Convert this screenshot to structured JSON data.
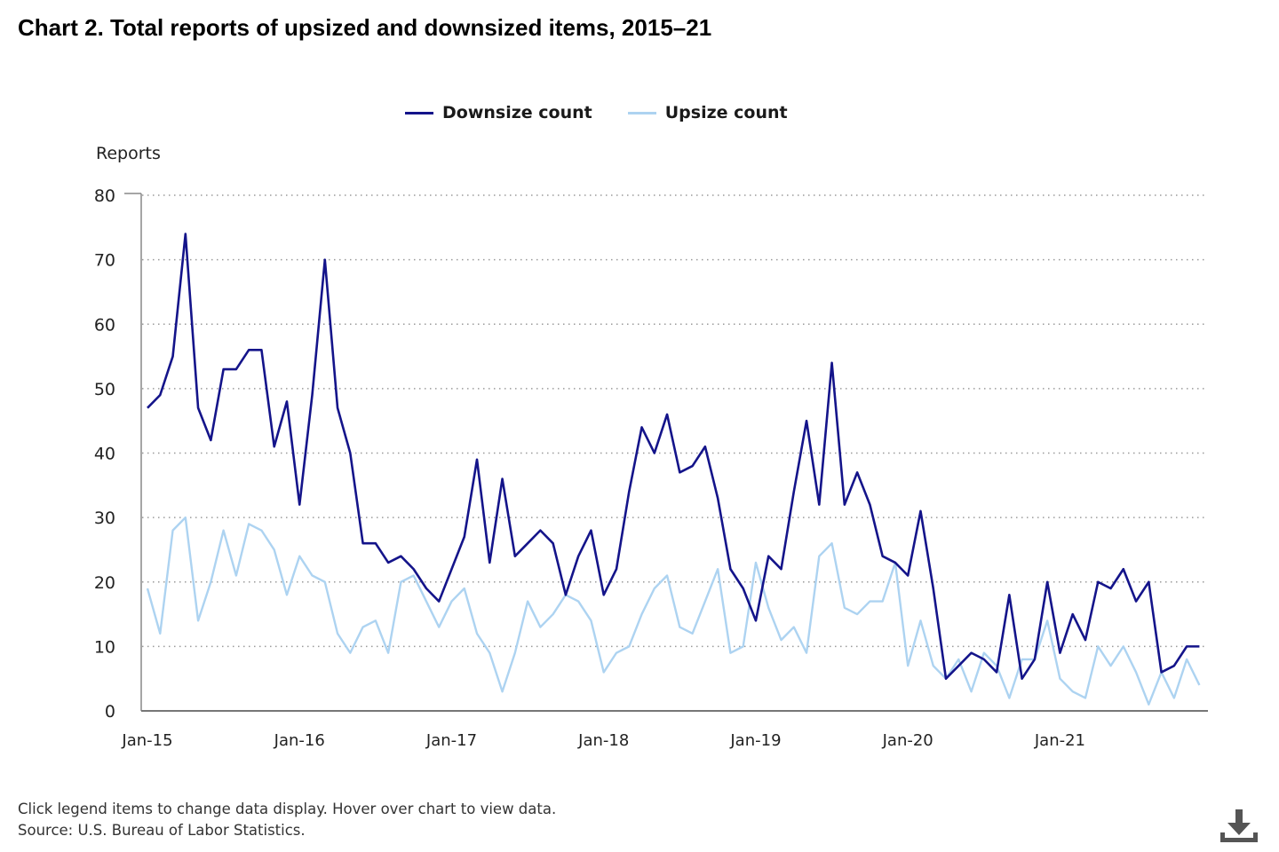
{
  "page": {
    "title": "Chart 2. Total reports of upsized and downsized items, 2015–21",
    "footer_line1": "Click legend items to change data display. Hover over chart to view data.",
    "footer_line2": "Source: U.S. Bureau of Labor Statistics.",
    "download_icon": "download-icon"
  },
  "legend": {
    "items": [
      {
        "label": "Downsize count",
        "color": "#14148a"
      },
      {
        "label": "Upsize count",
        "color": "#add3f1"
      }
    ]
  },
  "chart_data": {
    "type": "line",
    "title": "Chart 2. Total reports of upsized and downsized items, 2015–21",
    "ylabel": "Reports",
    "xlabel": "",
    "ylim": [
      0,
      80
    ],
    "yticks": [
      0,
      10,
      20,
      30,
      40,
      50,
      60,
      70,
      80
    ],
    "grid": true,
    "legend_position": "top-center",
    "xtick_labels": [
      {
        "label": "Jan-15",
        "index": 0
      },
      {
        "label": "Jan-16",
        "index": 12
      },
      {
        "label": "Jan-17",
        "index": 24
      },
      {
        "label": "Jan-18",
        "index": 36
      },
      {
        "label": "Jan-19",
        "index": 48
      },
      {
        "label": "Jan-20",
        "index": 60
      },
      {
        "label": "Jan-21",
        "index": 72
      }
    ],
    "x": [
      "Jan-15",
      "Feb-15",
      "Mar-15",
      "Apr-15",
      "May-15",
      "Jun-15",
      "Jul-15",
      "Aug-15",
      "Sep-15",
      "Oct-15",
      "Nov-15",
      "Dec-15",
      "Jan-16",
      "Feb-16",
      "Mar-16",
      "Apr-16",
      "May-16",
      "Jun-16",
      "Jul-16",
      "Aug-16",
      "Sep-16",
      "Oct-16",
      "Nov-16",
      "Dec-16",
      "Jan-17",
      "Feb-17",
      "Mar-17",
      "Apr-17",
      "May-17",
      "Jun-17",
      "Jul-17",
      "Aug-17",
      "Sep-17",
      "Oct-17",
      "Nov-17",
      "Dec-17",
      "Jan-18",
      "Feb-18",
      "Mar-18",
      "Apr-18",
      "May-18",
      "Jun-18",
      "Jul-18",
      "Aug-18",
      "Sep-18",
      "Oct-18",
      "Nov-18",
      "Dec-18",
      "Jan-19",
      "Feb-19",
      "Mar-19",
      "Apr-19",
      "May-19",
      "Jun-19",
      "Jul-19",
      "Aug-19",
      "Sep-19",
      "Oct-19",
      "Nov-19",
      "Dec-19",
      "Jan-20",
      "Feb-20",
      "Mar-20",
      "Apr-20",
      "May-20",
      "Jun-20",
      "Jul-20",
      "Aug-20",
      "Sep-20",
      "Oct-20",
      "Nov-20",
      "Dec-20",
      "Jan-21",
      "Feb-21",
      "Mar-21",
      "Apr-21",
      "May-21",
      "Jun-21",
      "Jul-21",
      "Aug-21",
      "Sep-21",
      "Oct-21",
      "Nov-21",
      "Dec-21"
    ],
    "series": [
      {
        "name": "Downsize count",
        "color": "#14148a",
        "values": [
          47,
          49,
          55,
          74,
          47,
          42,
          53,
          53,
          56,
          56,
          41,
          48,
          32,
          49,
          70,
          47,
          40,
          26,
          26,
          23,
          24,
          22,
          19,
          17,
          22,
          27,
          39,
          23,
          36,
          24,
          26,
          28,
          26,
          18,
          24,
          28,
          18,
          22,
          34,
          44,
          40,
          46,
          37,
          38,
          41,
          33,
          22,
          19,
          14,
          24,
          22,
          34,
          45,
          32,
          54,
          32,
          37,
          32,
          24,
          23,
          21,
          31,
          19,
          5,
          7,
          9,
          8,
          6,
          18,
          5,
          8,
          20,
          9,
          15,
          11,
          20,
          19,
          22,
          17,
          20,
          6,
          7,
          10,
          10
        ]
      },
      {
        "name": "Upsize count",
        "color": "#add3f1",
        "values": [
          19,
          12,
          28,
          30,
          14,
          20,
          28,
          21,
          29,
          28,
          25,
          18,
          24,
          21,
          20,
          12,
          9,
          13,
          14,
          9,
          20,
          21,
          17,
          13,
          17,
          19,
          12,
          9,
          3,
          9,
          17,
          13,
          15,
          18,
          17,
          14,
          6,
          9,
          10,
          15,
          19,
          21,
          13,
          12,
          17,
          22,
          9,
          10,
          23,
          16,
          11,
          13,
          9,
          24,
          26,
          16,
          15,
          17,
          17,
          23,
          7,
          14,
          7,
          5,
          8,
          3,
          9,
          7,
          2,
          8,
          8,
          14,
          5,
          3,
          2,
          10,
          7,
          10,
          6,
          1,
          6,
          2,
          8,
          4
        ]
      }
    ]
  }
}
